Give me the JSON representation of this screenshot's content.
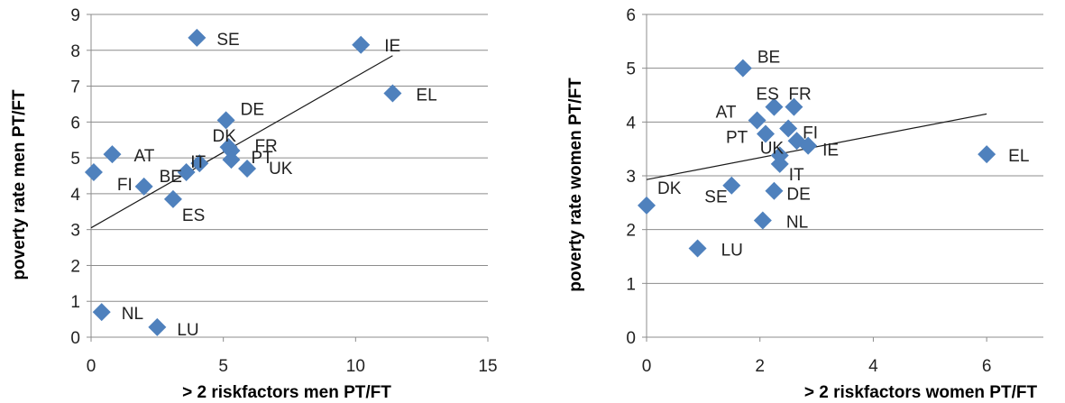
{
  "chart_data": [
    {
      "type": "scatter",
      "xlabel": "> 2 riskfactors men PT/FT",
      "ylabel": "poverty rate men PT/FT",
      "xlim": [
        0,
        15
      ],
      "ylim": [
        0,
        9
      ],
      "x_ticks": [
        "0",
        "5",
        "10",
        "15"
      ],
      "y_ticks": [
        "0",
        "1",
        "2",
        "3",
        "4",
        "5",
        "6",
        "7",
        "8",
        "9"
      ],
      "grid": "horizontal",
      "marker_color": "#4f81bd",
      "trendline": {
        "x": [
          0,
          11.4
        ],
        "y": [
          3.05,
          7.85
        ]
      },
      "points": [
        {
          "label": "SE",
          "x": 4.0,
          "y": 8.35
        },
        {
          "label": "IE",
          "x": 10.2,
          "y": 8.15
        },
        {
          "label": "EL",
          "x": 11.4,
          "y": 6.8
        },
        {
          "label": "DE",
          "x": 5.1,
          "y": 6.05
        },
        {
          "label": "DK",
          "x": 5.2,
          "y": 5.3
        },
        {
          "label": "FR",
          "x": 5.3,
          "y": 5.2
        },
        {
          "label": "PT",
          "x": 5.3,
          "y": 4.95
        },
        {
          "label": "UK",
          "x": 5.9,
          "y": 4.7
        },
        {
          "label": "AT",
          "x": 0.8,
          "y": 5.1
        },
        {
          "label": "IT",
          "x": 4.1,
          "y": 4.85
        },
        {
          "label": "BE",
          "x": 3.6,
          "y": 4.6
        },
        {
          "label": "FI",
          "x": 0.1,
          "y": 4.6
        },
        {
          "label": "",
          "x": 2.0,
          "y": 4.2
        },
        {
          "label": "ES",
          "x": 3.1,
          "y": 3.85
        },
        {
          "label": "NL",
          "x": 0.4,
          "y": 0.7
        },
        {
          "label": "LU",
          "x": 2.5,
          "y": 0.28
        }
      ]
    },
    {
      "type": "scatter",
      "xlabel": "> 2 riskfactors women PT/FT",
      "ylabel": "poverty rate women PT/FT",
      "xlim": [
        0,
        7
      ],
      "ylim": [
        0,
        6
      ],
      "x_ticks": [
        "0",
        "2",
        "4",
        "6"
      ],
      "y_ticks": [
        "0",
        "1",
        "2",
        "3",
        "4",
        "5",
        "6"
      ],
      "grid": "horizontal",
      "marker_color": "#4f81bd",
      "trendline": {
        "x": [
          0,
          6
        ],
        "y": [
          2.93,
          4.15
        ]
      },
      "points": [
        {
          "label": "BE",
          "x": 1.7,
          "y": 5.0
        },
        {
          "label": "ES",
          "x": 2.25,
          "y": 4.28
        },
        {
          "label": "FR",
          "x": 2.6,
          "y": 4.28
        },
        {
          "label": "AT",
          "x": 1.95,
          "y": 4.03
        },
        {
          "label": "FI",
          "x": 2.5,
          "y": 3.88
        },
        {
          "label": "PT",
          "x": 2.1,
          "y": 3.78
        },
        {
          "label": "",
          "x": 2.65,
          "y": 3.65
        },
        {
          "label": "IE",
          "x": 2.85,
          "y": 3.56
        },
        {
          "label": "UK",
          "x": 2.35,
          "y": 3.38
        },
        {
          "label": "IT",
          "x": 2.35,
          "y": 3.22
        },
        {
          "label": "EL",
          "x": 6.0,
          "y": 3.4
        },
        {
          "label": "SE",
          "x": 1.5,
          "y": 2.82
        },
        {
          "label": "DE",
          "x": 2.25,
          "y": 2.72
        },
        {
          "label": "DK",
          "x": 0.0,
          "y": 2.45
        },
        {
          "label": "NL",
          "x": 2.05,
          "y": 2.17
        },
        {
          "label": "LU",
          "x": 0.9,
          "y": 1.65
        }
      ]
    }
  ]
}
